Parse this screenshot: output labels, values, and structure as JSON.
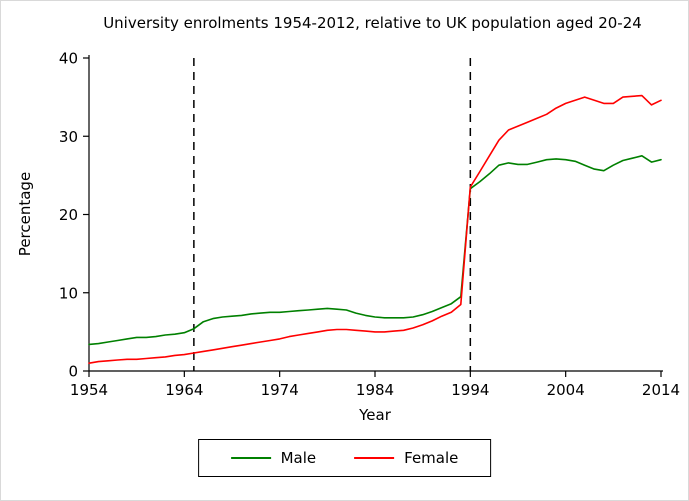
{
  "chart_data": {
    "type": "line",
    "title": "University enrolments 1954-2012, relative to UK population aged 20-24",
    "xlabel": "Year",
    "ylabel": "Percentage",
    "xlim": [
      1954,
      2014
    ],
    "ylim": [
      0,
      40
    ],
    "xticks": [
      1954,
      1964,
      1974,
      1984,
      1994,
      2004,
      2014
    ],
    "yticks": [
      0,
      10,
      20,
      30,
      40
    ],
    "grid": false,
    "legend_position": "bottom-center-boxed",
    "axis_color": "#000000",
    "reference_lines": [
      {
        "axis": "x",
        "value": 1965,
        "style": "dashed",
        "color": "#000000"
      },
      {
        "axis": "x",
        "value": 1994,
        "style": "dashed",
        "color": "#000000"
      }
    ],
    "x": [
      1954,
      1955,
      1956,
      1957,
      1958,
      1959,
      1960,
      1961,
      1962,
      1963,
      1964,
      1965,
      1966,
      1967,
      1968,
      1969,
      1970,
      1971,
      1972,
      1973,
      1974,
      1975,
      1976,
      1977,
      1978,
      1979,
      1980,
      1981,
      1982,
      1983,
      1984,
      1985,
      1986,
      1987,
      1988,
      1989,
      1990,
      1991,
      1992,
      1993,
      1994,
      1995,
      1996,
      1997,
      1998,
      1999,
      2000,
      2001,
      2002,
      2003,
      2004,
      2005,
      2006,
      2007,
      2008,
      2009,
      2010,
      2011,
      2012,
      2013,
      2014
    ],
    "series": [
      {
        "name": "Male",
        "color": "#008000",
        "values": [
          3.4,
          3.5,
          3.7,
          3.9,
          4.1,
          4.3,
          4.3,
          4.4,
          4.6,
          4.7,
          4.9,
          5.4,
          6.3,
          6.7,
          6.9,
          7.0,
          7.1,
          7.3,
          7.4,
          7.5,
          7.5,
          7.6,
          7.7,
          7.8,
          7.9,
          8.0,
          7.9,
          7.8,
          7.4,
          7.1,
          6.9,
          6.8,
          6.8,
          6.8,
          6.9,
          7.2,
          7.6,
          8.1,
          8.6,
          9.5,
          23.3,
          24.2,
          25.2,
          26.3,
          26.6,
          26.4,
          26.4,
          26.7,
          27.0,
          27.1,
          27.0,
          26.8,
          26.3,
          25.8,
          25.6,
          26.3,
          26.9,
          27.2,
          27.5,
          26.7,
          27.0
        ]
      },
      {
        "name": "Female",
        "color": "#ff0000",
        "values": [
          1.0,
          1.2,
          1.3,
          1.4,
          1.5,
          1.5,
          1.6,
          1.7,
          1.8,
          2.0,
          2.1,
          2.3,
          2.5,
          2.7,
          2.9,
          3.1,
          3.3,
          3.5,
          3.7,
          3.9,
          4.1,
          4.4,
          4.6,
          4.8,
          5.0,
          5.2,
          5.3,
          5.3,
          5.2,
          5.1,
          5.0,
          5.0,
          5.1,
          5.2,
          5.5,
          5.9,
          6.4,
          7.0,
          7.5,
          8.5,
          23.5,
          25.5,
          27.5,
          29.5,
          30.8,
          31.3,
          31.8,
          32.3,
          32.8,
          33.6,
          34.2,
          34.6,
          35.0,
          34.6,
          34.2,
          34.2,
          35.0,
          35.1,
          35.2,
          34.0,
          34.6
        ]
      }
    ]
  }
}
